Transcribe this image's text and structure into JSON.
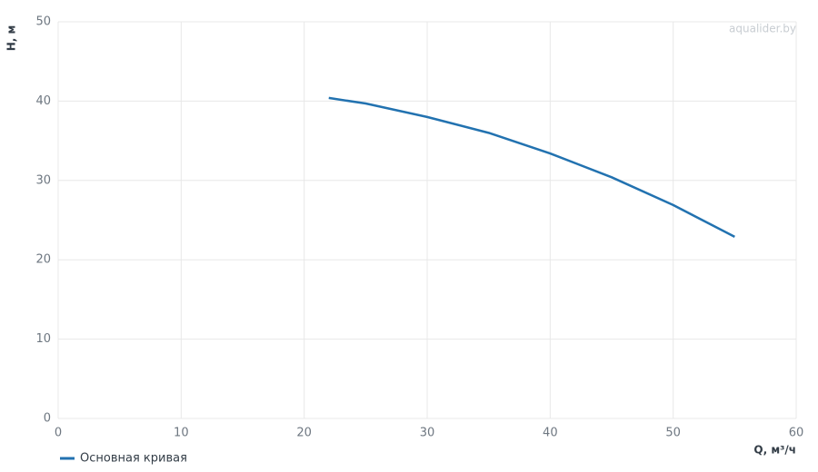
{
  "chart_data": {
    "type": "line",
    "watermark": "aqualider.by",
    "x_label": "Q, м³/ч",
    "y_label": "H, м",
    "x": [
      22,
      25,
      30,
      35,
      40,
      45,
      50,
      55
    ],
    "series": [
      {
        "name": "Основная кривая",
        "color": "#2272b0",
        "values": [
          40.4,
          39.7,
          38.0,
          36.0,
          33.4,
          30.4,
          26.9,
          22.9
        ]
      }
    ],
    "xlim": [
      0,
      60
    ],
    "xticks": [
      0,
      10,
      20,
      30,
      40,
      50,
      60
    ],
    "ylim": [
      0,
      50
    ],
    "yticks": [
      0,
      10,
      20,
      30,
      40,
      50
    ],
    "grid": true,
    "legend": "bottom-left"
  }
}
